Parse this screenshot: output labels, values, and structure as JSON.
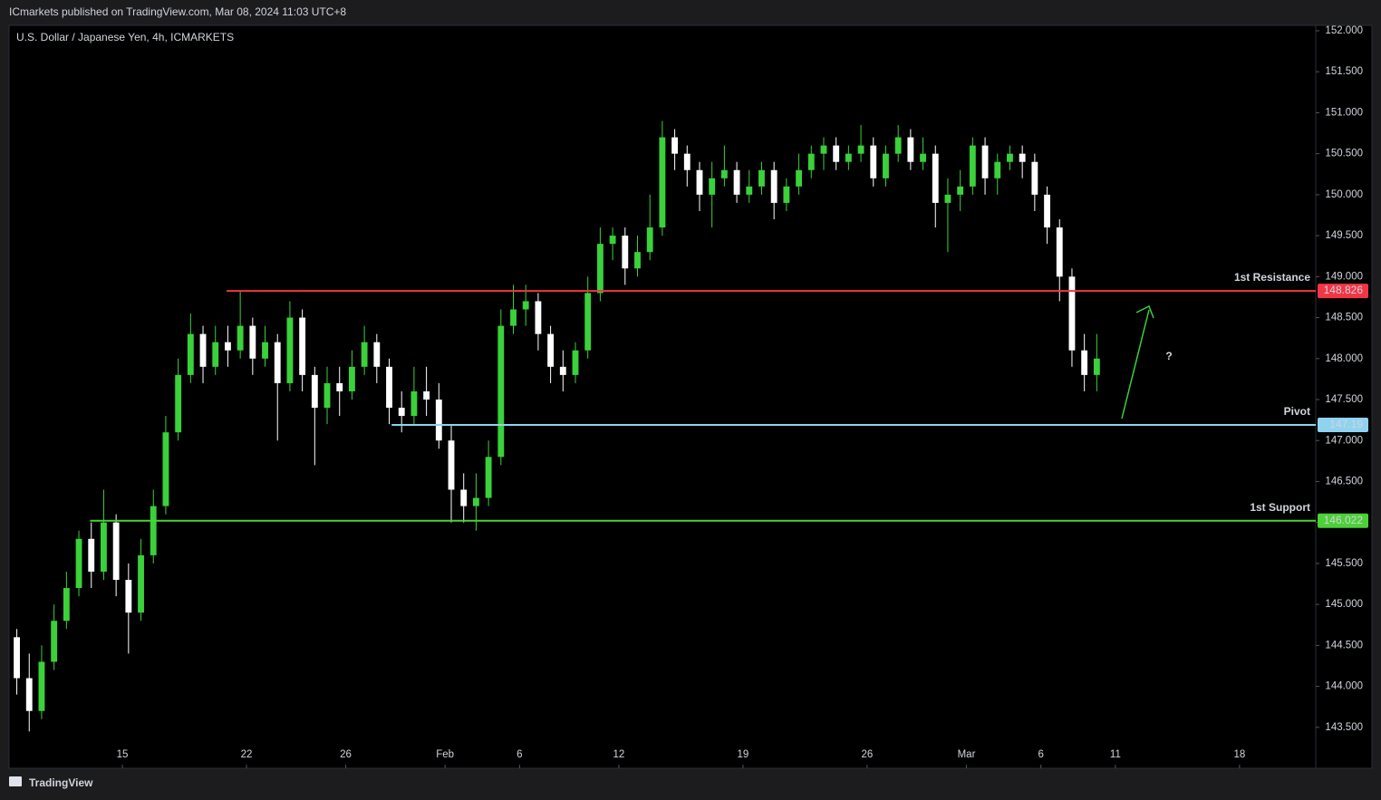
{
  "header": "ICmarkets published on TradingView.com, Mar 08, 2024 11:03 UTC+8",
  "footer": "TradingView",
  "chart_data": {
    "type": "candlestick",
    "title": "U.S. Dollar / Japanese Yen, 4h, ICMARKETS",
    "up_color": "#3ad13a",
    "down_color": "#ffffff",
    "xlim": [
      -4.5,
      48.07
    ],
    "xticks": [
      {
        "value": 0,
        "label": "15"
      },
      {
        "value": 5,
        "label": "22"
      },
      {
        "value": 9,
        "label": "26"
      },
      {
        "value": 13,
        "label": "Feb"
      },
      {
        "value": 16,
        "label": "6"
      },
      {
        "value": 20,
        "label": "12"
      },
      {
        "value": 25,
        "label": "19"
      },
      {
        "value": 30,
        "label": "26"
      },
      {
        "value": 34,
        "label": "Mar"
      },
      {
        "value": 37,
        "label": "6"
      },
      {
        "value": 40,
        "label": "11"
      },
      {
        "value": 45,
        "label": "18"
      }
    ],
    "ylim": [
      143.31,
      152.066
    ],
    "yticks": [
      {
        "value": 143.5,
        "label": "143.500"
      },
      {
        "value": 144,
        "label": "144.000"
      },
      {
        "value": 144.5,
        "label": "144.500"
      },
      {
        "value": 145,
        "label": "145.000"
      },
      {
        "value": 145.5,
        "label": "145.500"
      },
      {
        "value": 146,
        "label": "146.000"
      },
      {
        "value": 146.5,
        "label": "146.500"
      },
      {
        "value": 147,
        "label": "147.000"
      },
      {
        "value": 147.5,
        "label": "147.500"
      },
      {
        "value": 148,
        "label": "148.000"
      },
      {
        "value": 148.5,
        "label": "148.500"
      },
      {
        "value": 149,
        "label": "149.000"
      },
      {
        "value": 149.5,
        "label": "149.500"
      },
      {
        "value": 150,
        "label": "150.000"
      },
      {
        "value": 150.5,
        "label": "150.500"
      },
      {
        "value": 151,
        "label": "151.000"
      },
      {
        "value": 151.5,
        "label": "151.500"
      },
      {
        "value": 152,
        "label": "152.000"
      }
    ],
    "x": [
      -4.25,
      -3.75,
      -3.25,
      -2.75,
      -2.25,
      -1.75,
      -1.25,
      -0.75,
      -0.25,
      0.25,
      0.75,
      1.25,
      1.75,
      2.25,
      2.75,
      3.25,
      3.75,
      4.25,
      4.75,
      5.25,
      5.75,
      6.25,
      6.75,
      7.25,
      7.75,
      8.25,
      8.75,
      9.25,
      9.75,
      10.25,
      10.75,
      11.25,
      11.75,
      12.25,
      12.75,
      13.25,
      13.75,
      14.25,
      14.75,
      15.25,
      15.75,
      16.25,
      16.75,
      17.25,
      17.75,
      18.25,
      18.75,
      19.25,
      19.75,
      20.25,
      20.75,
      21.25,
      21.75,
      22.25,
      22.75,
      23.25,
      23.75,
      24.25,
      24.75,
      25.25,
      25.75,
      26.25,
      26.75,
      27.25,
      27.75,
      28.25,
      28.75,
      29.25,
      29.75,
      30.25,
      30.75,
      31.25,
      31.75,
      32.25,
      32.75,
      33.25,
      33.75,
      34.25,
      34.75,
      35.25,
      35.75,
      36.25,
      36.75,
      37.25,
      37.75,
      38.25,
      38.75,
      39.25
    ],
    "open": [
      144.6,
      144.1,
      143.7,
      144.3,
      144.8,
      145.2,
      145.8,
      145.4,
      146.0,
      145.3,
      144.9,
      145.6,
      146.2,
      147.1,
      147.8,
      148.3,
      147.9,
      148.2,
      148.1,
      148.4,
      148.0,
      148.2,
      147.7,
      148.5,
      147.8,
      147.4,
      147.7,
      147.6,
      147.9,
      148.2,
      147.9,
      147.4,
      147.3,
      147.6,
      147.5,
      147.0,
      146.4,
      146.2,
      146.3,
      146.8,
      148.4,
      148.6,
      148.7,
      148.3,
      147.9,
      147.8,
      148.1,
      148.8,
      149.4,
      149.5,
      149.1,
      149.3,
      149.6,
      150.7,
      150.5,
      150.3,
      150.0,
      150.2,
      150.3,
      150.0,
      150.1,
      150.3,
      149.9,
      150.1,
      150.3,
      150.5,
      150.6,
      150.4,
      150.5,
      150.6,
      150.2,
      150.5,
      150.7,
      150.4,
      150.5,
      149.9,
      150.0,
      150.1,
      150.6,
      150.2,
      150.4,
      150.5,
      150.4,
      150.0,
      149.6,
      149.0,
      148.1,
      147.8
    ],
    "high": [
      144.7,
      144.4,
      144.5,
      145.0,
      145.4,
      145.9,
      146.0,
      146.4,
      146.1,
      145.5,
      145.8,
      146.4,
      147.3,
      148.0,
      148.55,
      148.4,
      148.4,
      148.4,
      148.83,
      148.5,
      148.4,
      148.3,
      148.7,
      148.6,
      147.9,
      147.9,
      147.9,
      148.1,
      148.4,
      148.3,
      148.0,
      147.6,
      147.9,
      147.9,
      147.7,
      147.2,
      146.6,
      146.6,
      147.0,
      148.6,
      148.9,
      148.9,
      148.8,
      148.4,
      148.1,
      148.2,
      149.0,
      149.6,
      149.6,
      149.6,
      149.5,
      150.0,
      150.9,
      150.8,
      150.6,
      150.4,
      150.4,
      150.6,
      150.4,
      150.3,
      150.4,
      150.4,
      150.2,
      150.5,
      150.6,
      150.7,
      150.7,
      150.6,
      150.85,
      150.7,
      150.6,
      150.85,
      150.8,
      150.7,
      150.6,
      150.2,
      150.3,
      150.7,
      150.7,
      150.5,
      150.6,
      150.6,
      150.5,
      150.1,
      149.7,
      149.1,
      148.3,
      148.3
    ],
    "low": [
      143.9,
      143.45,
      143.6,
      144.2,
      144.7,
      145.1,
      145.2,
      145.3,
      145.1,
      144.4,
      144.8,
      145.5,
      146.1,
      147.0,
      147.7,
      147.7,
      147.8,
      147.9,
      148.0,
      147.8,
      147.9,
      147.0,
      147.6,
      147.6,
      146.7,
      147.2,
      147.3,
      147.5,
      147.8,
      147.7,
      147.2,
      147.1,
      147.2,
      147.3,
      146.9,
      146.0,
      146.0,
      145.9,
      146.2,
      146.7,
      148.3,
      148.4,
      148.1,
      147.7,
      147.6,
      147.7,
      148.0,
      148.7,
      149.2,
      148.9,
      149.0,
      149.2,
      149.5,
      150.3,
      150.1,
      149.8,
      149.6,
      150.1,
      149.9,
      149.9,
      150.0,
      149.7,
      149.8,
      150.0,
      150.2,
      150.3,
      150.3,
      150.3,
      150.4,
      150.1,
      150.1,
      150.4,
      150.3,
      150.3,
      149.6,
      149.3,
      149.8,
      150.0,
      150.0,
      150.0,
      150.3,
      150.2,
      149.8,
      149.4,
      148.7,
      147.9,
      147.6,
      147.6
    ],
    "close": [
      144.1,
      143.7,
      144.3,
      144.8,
      145.2,
      145.8,
      145.4,
      146.0,
      145.3,
      144.9,
      145.6,
      146.2,
      147.1,
      147.8,
      148.3,
      147.9,
      148.2,
      148.1,
      148.4,
      148.0,
      148.2,
      147.7,
      148.5,
      147.8,
      147.4,
      147.7,
      147.6,
      147.9,
      148.2,
      147.9,
      147.4,
      147.3,
      147.6,
      147.5,
      147.0,
      146.4,
      146.2,
      146.3,
      146.8,
      148.4,
      148.6,
      148.7,
      148.3,
      147.9,
      147.8,
      148.1,
      148.8,
      149.4,
      149.5,
      149.1,
      149.3,
      149.6,
      150.7,
      150.5,
      150.3,
      150.0,
      150.2,
      150.3,
      150.0,
      150.1,
      150.3,
      149.9,
      150.1,
      150.3,
      150.5,
      150.6,
      150.4,
      150.5,
      150.6,
      150.2,
      150.5,
      150.7,
      150.4,
      150.5,
      149.9,
      150.0,
      150.1,
      150.6,
      150.2,
      150.4,
      150.5,
      150.4,
      150.0,
      149.6,
      149.0,
      148.1,
      147.8,
      148.0
    ],
    "levels": [
      {
        "name": "1st Resistance",
        "value": 148.826,
        "color": "#f23645",
        "from": 4.2
      },
      {
        "name": "Pivot",
        "value": 147.19,
        "color": "#8fd3f0",
        "from": 10.85
      },
      {
        "name": "1st Support",
        "value": 146.022,
        "color": "#4cd137",
        "from": -1.3
      }
    ],
    "annotation": "?"
  }
}
